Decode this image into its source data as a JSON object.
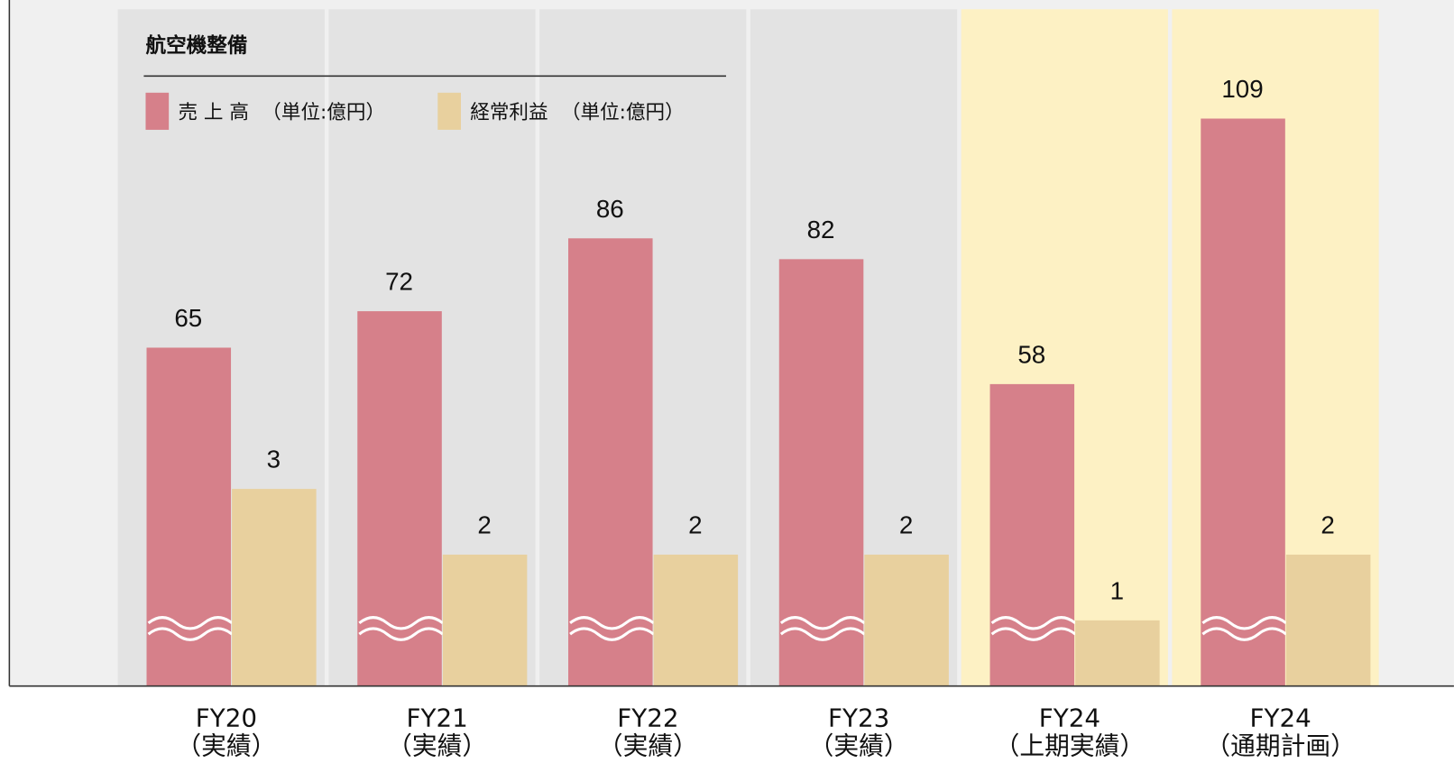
{
  "chart_data": {
    "type": "bar",
    "title": "航空機整備",
    "categories": [
      "FY20",
      "FY21",
      "FY22",
      "FY23",
      "FY24",
      "FY24"
    ],
    "category_notes": [
      "（実績）",
      "（実績）",
      "（実績）",
      "（実績）",
      "（上期実績）",
      "（通期計画）"
    ],
    "panel_colors": [
      "#e3e3e3",
      "#e3e3e3",
      "#e3e3e3",
      "#e3e3e3",
      "#fdf1c4",
      "#fdf1c4"
    ],
    "series": [
      {
        "name": "売 上 高",
        "unit": "（単位:億円）",
        "color": "#d6808a",
        "values": [
          65,
          72,
          86,
          82,
          58,
          109
        ]
      },
      {
        "name": "経常利益",
        "unit": "（単位:億円）",
        "color": "#e8d09e",
        "axis": "y2",
        "values": [
          3,
          2,
          2,
          2,
          1,
          2
        ]
      }
    ],
    "ylim": [
      0,
      130
    ],
    "y2lim": [
      0,
      10.3
    ]
  }
}
